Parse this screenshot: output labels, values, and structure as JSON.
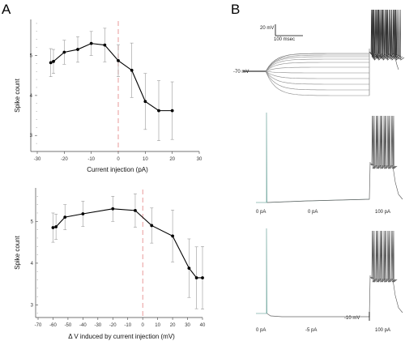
{
  "panel_labels": {
    "a": "A",
    "b": "B"
  },
  "chart_data": [
    {
      "type": "line",
      "panel": "A-top",
      "xlabel": "Current injection (pA)",
      "ylabel": "Spike count",
      "xlim": [
        -30,
        30
      ],
      "ylim": [
        2.6,
        5.9
      ],
      "xticks": [
        -30,
        -20,
        -10,
        0,
        10,
        20,
        30
      ],
      "yticks": [
        3,
        4,
        5
      ],
      "vline_x": 0,
      "x": [
        -25,
        -24,
        -20,
        -15,
        -10,
        -5,
        0,
        5,
        10,
        15,
        20
      ],
      "y": [
        4.82,
        4.85,
        5.08,
        5.15,
        5.3,
        5.26,
        4.87,
        4.63,
        3.85,
        3.62,
        3.62
      ],
      "err": [
        0.35,
        0.3,
        0.3,
        0.32,
        0.3,
        0.42,
        0.4,
        0.68,
        0.7,
        0.75,
        0.72
      ]
    },
    {
      "type": "line",
      "panel": "A-bottom",
      "xlabel": "Δ V induced by current injection (mV)",
      "ylabel": "Spike count",
      "xlim": [
        -70,
        40
      ],
      "ylim": [
        2.7,
        5.8
      ],
      "xticks": [
        -70,
        -60,
        -50,
        -40,
        -30,
        -20,
        -10,
        0,
        10,
        20,
        30,
        40
      ],
      "yticks": [
        3,
        4,
        5
      ],
      "vline_x": 0,
      "x": [
        -60,
        -58,
        -52,
        -40,
        -20,
        -5,
        6,
        20,
        31,
        36,
        40
      ],
      "y": [
        4.85,
        4.87,
        5.1,
        5.18,
        5.3,
        5.26,
        4.9,
        4.65,
        3.88,
        3.65,
        3.65
      ],
      "err": [
        0.35,
        0.3,
        0.3,
        0.3,
        0.3,
        0.4,
        0.42,
        0.62,
        0.7,
        0.74,
        0.75
      ]
    }
  ],
  "panel_b": {
    "scale_bar_mv": "20 mV",
    "scale_bar_ms": "100 msec",
    "rest_label": "-70 mV",
    "mid_labels": [
      "0 pA",
      "0 pA",
      "100 pA"
    ],
    "bottom_labels": [
      "0 pA",
      "-5 pA",
      "100 pA"
    ],
    "bottom_scale": "-10 mV"
  }
}
